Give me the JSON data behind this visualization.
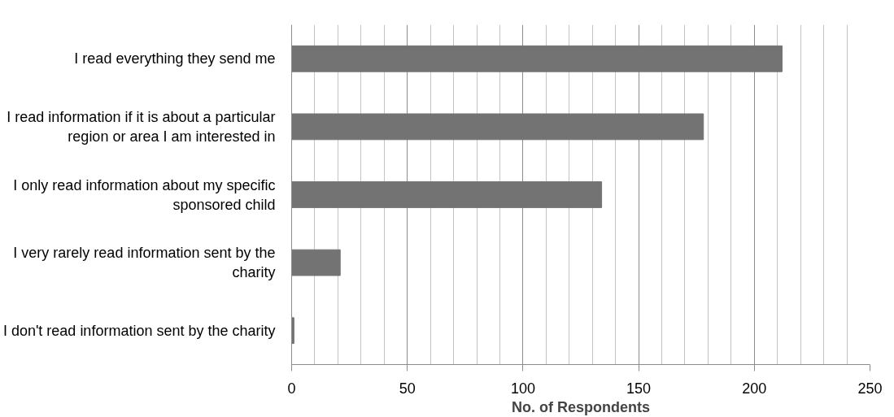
{
  "chart_data": {
    "type": "bar",
    "orientation": "horizontal",
    "xlabel": "No. of Respondents",
    "categories": [
      "I read everything they send me",
      "I read information if it is about a particular region or area I am interested in",
      "I only read information about my specific sponsored child",
      "I very rarely read information sent by the charity",
      "I don't read information sent by the charity"
    ],
    "values": [
      212,
      178,
      134,
      21,
      1
    ],
    "color": "#737373",
    "xlim": [
      0,
      250
    ],
    "xticks": [
      0,
      50,
      100,
      150,
      200,
      250
    ],
    "grid": "x"
  }
}
